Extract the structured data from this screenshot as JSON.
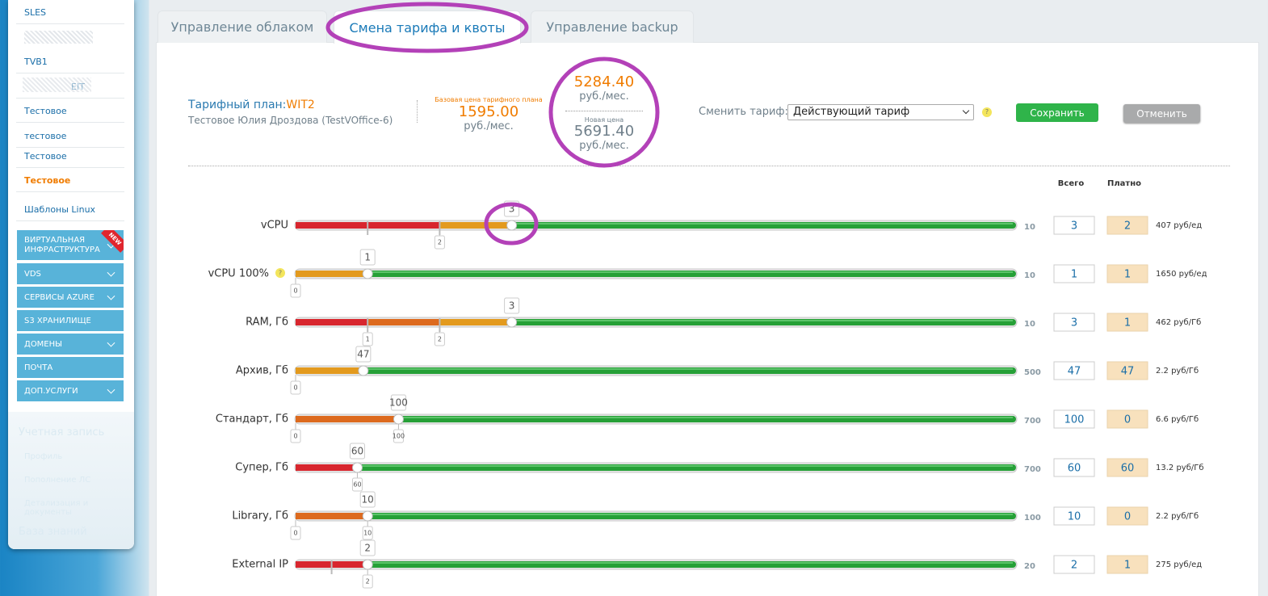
{
  "sidebar": {
    "items": [
      "SLES",
      "TVB1",
      "EIT",
      "Тестовое",
      "тестовое",
      "Тестовое",
      "Тестовое",
      "Шаблоны Linux"
    ],
    "menu": [
      "ВИРТУАЛЬНАЯ ИНФРАСТРУКТУРА",
      "VDS",
      "СЕРВИСЫ AZURE",
      "S3 ХРАНИЛИЩЕ",
      "ДОМЕНЫ",
      "ПОЧТА",
      "ДОП.УСЛУГИ"
    ],
    "badge": "NEW",
    "account": {
      "title": "Учетная запись",
      "links": [
        "Профиль",
        "Пополнение ЛС",
        "Детализация и документы"
      ],
      "knowledge": "База знаний"
    }
  },
  "tabs": [
    "Управление облаком",
    "Смена тарифа и квоты",
    "Управление backup"
  ],
  "header": {
    "plan_label": "Тарифный план:",
    "plan_name": "WIT2",
    "client": "Тестовое Юлия Дроздова (TestVOffice-6)",
    "base_price_label": "Базовая цена тарифного плана",
    "base_price": "1595.00",
    "base_unit": "руб./мес.",
    "current_price": "5284.40",
    "current_unit": "руб./мес.",
    "new_price_label": "Новая цена",
    "new_price": "5691.40",
    "new_unit": "руб./мес.",
    "change_label": "Сменить тариф:",
    "select": "Действующий тариф",
    "help": "?",
    "save": "Сохранить",
    "cancel": "Отменить"
  },
  "columns": {
    "total": "Всего",
    "paid": "Платно"
  },
  "rows": [
    {
      "name": "vCPU",
      "max": 10,
      "value": 3,
      "markers": [
        2
      ],
      "segments": [
        {
          "to": 1,
          "color": "#d8262e"
        },
        {
          "to": 2,
          "color": "#d8262e"
        },
        {
          "to": 3,
          "color": "#e39a1e"
        }
      ],
      "total": 3,
      "paid": 2,
      "price": "407 руб/ед"
    },
    {
      "name": "vCPU 100%",
      "help": true,
      "max": 10,
      "value": 1,
      "markers": [
        0
      ],
      "segments": [
        {
          "to": 1,
          "color": "#e39a1e"
        }
      ],
      "total": 1,
      "paid": 1,
      "price": "1650 руб/ед"
    },
    {
      "name": "RAM, Гб",
      "max": 10,
      "value": 3,
      "markers": [
        1,
        2
      ],
      "segments": [
        {
          "to": 1,
          "color": "#d8262e"
        },
        {
          "to": 2,
          "color": "#dd6a1e"
        },
        {
          "to": 3,
          "color": "#e39a1e"
        }
      ],
      "total": 3,
      "paid": 1,
      "price": "462 руб/Гб"
    },
    {
      "name": "Архив, Гб",
      "max": 500,
      "value": 47,
      "markers": [
        0
      ],
      "segments": [
        {
          "to": 47,
          "color": "#e39a1e"
        }
      ],
      "total": 47,
      "paid": 47,
      "price": "2.2 руб/Гб"
    },
    {
      "name": "Стандарт, Гб",
      "max": 700,
      "value": 100,
      "markers": [
        0,
        100
      ],
      "segments": [
        {
          "to": 100,
          "color": "#dd6a1e"
        }
      ],
      "total": 100,
      "paid": 0,
      "price": "6.6 руб/Гб"
    },
    {
      "name": "Супер, Гб",
      "max": 700,
      "value": 60,
      "markers": [
        60
      ],
      "segments": [
        {
          "to": 60,
          "color": "#d8262e"
        }
      ],
      "total": 60,
      "paid": 60,
      "price": "13.2 руб/Гб"
    },
    {
      "name": "Library, Гб",
      "max": 100,
      "value": 10,
      "markers": [
        0,
        10
      ],
      "segments": [
        {
          "to": 10,
          "color": "#dd6a1e"
        }
      ],
      "total": 10,
      "paid": 0,
      "price": "2.2 руб/Гб"
    },
    {
      "name": "External IP",
      "max": 20,
      "value": 2,
      "markers": [
        2
      ],
      "segments": [
        {
          "to": 1,
          "color": "#d8262e"
        },
        {
          "to": 2,
          "color": "#d8262e"
        }
      ],
      "total": 2,
      "paid": 1,
      "price": "275 руб/ед"
    }
  ]
}
